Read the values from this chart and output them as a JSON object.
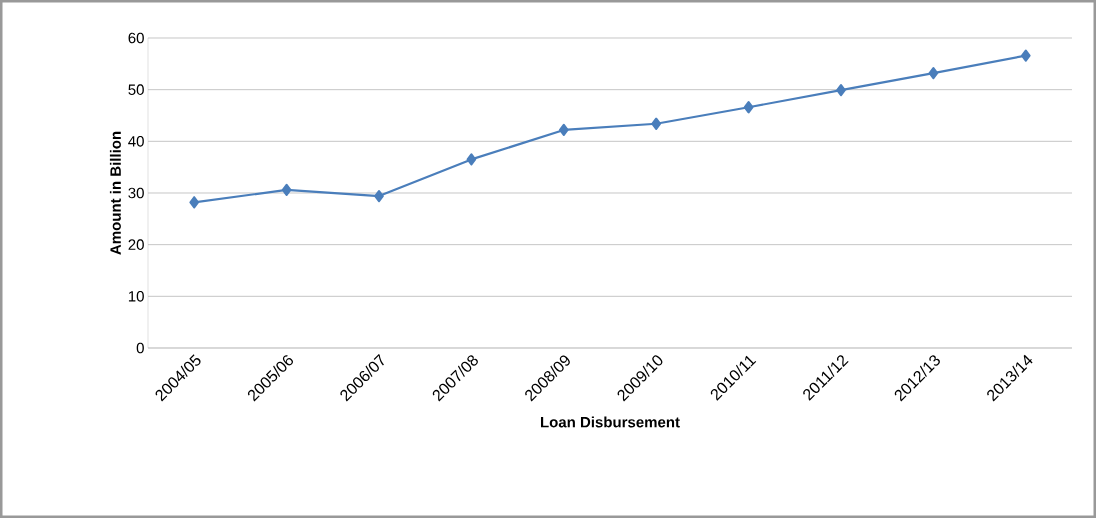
{
  "chart_data": {
    "type": "line",
    "xlabel": "Loan Disbursement",
    "ylabel": "Amount in Billion",
    "categories": [
      "2004/05",
      "2005/06",
      "2006/07",
      "2007/08",
      "2008/09",
      "2009/10",
      "2010/11",
      "2011/12",
      "2012/13",
      "2013/14"
    ],
    "series": [
      {
        "color": "#4a7ebb",
        "values": [
          28.2,
          30.6,
          29.4,
          36.5,
          42.2,
          43.4,
          46.6,
          49.9,
          53.2,
          56.6
        ]
      }
    ],
    "ylim": [
      0,
      60
    ],
    "yticks": [
      0,
      10,
      20,
      30,
      40,
      50,
      60
    ],
    "grid": "y",
    "marker": "diamond",
    "line_style": "solid"
  }
}
